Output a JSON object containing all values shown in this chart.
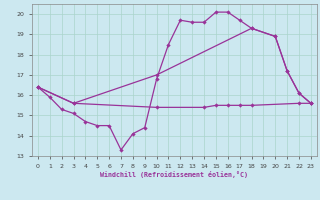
{
  "xlabel": "Windchill (Refroidissement éolien,°C)",
  "bg_color": "#cce8f0",
  "grid_color": "#aad4cc",
  "line_color": "#993399",
  "xlim": [
    -0.5,
    23.5
  ],
  "ylim": [
    13,
    20.5
  ],
  "xticks": [
    0,
    1,
    2,
    3,
    4,
    5,
    6,
    7,
    8,
    9,
    10,
    11,
    12,
    13,
    14,
    15,
    16,
    17,
    18,
    19,
    20,
    21,
    22,
    23
  ],
  "yticks": [
    13,
    14,
    15,
    16,
    17,
    18,
    19,
    20
  ],
  "s0_x": [
    0,
    1,
    2,
    3,
    4,
    5,
    6,
    7,
    8,
    9,
    10,
    11,
    12,
    13,
    14,
    15,
    16,
    17,
    18,
    20,
    21,
    22,
    23
  ],
  "s0_y": [
    16.4,
    15.9,
    15.3,
    15.1,
    14.7,
    14.5,
    14.5,
    13.3,
    14.1,
    14.4,
    16.8,
    18.5,
    19.7,
    19.6,
    19.6,
    20.1,
    20.1,
    19.7,
    19.3,
    18.9,
    17.2,
    16.1,
    15.6
  ],
  "s1_x": [
    0,
    3,
    10,
    18,
    20,
    21,
    22,
    23
  ],
  "s1_y": [
    16.4,
    15.6,
    17.0,
    19.3,
    18.9,
    17.2,
    16.1,
    15.6
  ],
  "s2_x": [
    0,
    3,
    10,
    14,
    15,
    16,
    17,
    18,
    22,
    23
  ],
  "s2_y": [
    16.4,
    15.6,
    15.4,
    15.4,
    15.5,
    15.5,
    15.5,
    15.5,
    15.6,
    15.6
  ]
}
